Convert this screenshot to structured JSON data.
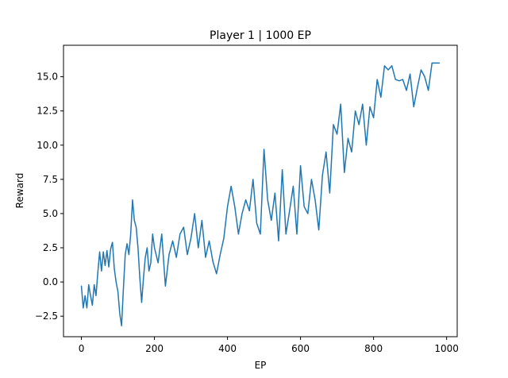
{
  "chart_data": {
    "type": "line",
    "title": "Player 1 | 1000 EP",
    "xlabel": "EP",
    "ylabel": "Reward",
    "xlim": [
      -49,
      1029
    ],
    "ylim": [
      -4.0,
      17.3
    ],
    "xticks": [
      0,
      200,
      400,
      600,
      800,
      1000
    ],
    "xtick_labels": [
      "0",
      "200",
      "400",
      "600",
      "800",
      "1000"
    ],
    "yticks": [
      -2.5,
      0.0,
      2.5,
      5.0,
      7.5,
      10.0,
      12.5,
      15.0
    ],
    "ytick_labels": [
      "−2.5",
      "0.0",
      "2.5",
      "5.0",
      "7.5",
      "10.0",
      "12.5",
      "15.0"
    ],
    "grid": false,
    "legend": null,
    "line_color": "#1f77b4",
    "series": [
      {
        "x": [
          0,
          5,
          10,
          15,
          20,
          25,
          30,
          35,
          40,
          45,
          50,
          55,
          60,
          65,
          70,
          75,
          80,
          85,
          90,
          95,
          100,
          105,
          110,
          115,
          120,
          125,
          130,
          135,
          140,
          145,
          150,
          155,
          160,
          165,
          170,
          175,
          180,
          185,
          190,
          195,
          200,
          210,
          220,
          230,
          240,
          250,
          260,
          270,
          280,
          290,
          300,
          310,
          320,
          330,
          340,
          350,
          360,
          370,
          380,
          390,
          400,
          410,
          420,
          430,
          440,
          450,
          460,
          470,
          480,
          490,
          500,
          510,
          520,
          530,
          540,
          550,
          560,
          570,
          580,
          590,
          600,
          610,
          620,
          630,
          640,
          650,
          660,
          670,
          680,
          690,
          700,
          710,
          720,
          730,
          740,
          750,
          760,
          770,
          780,
          790,
          800,
          810,
          820,
          830,
          840,
          850,
          860,
          870,
          880,
          890,
          900,
          910,
          920,
          930,
          940,
          950,
          960,
          970,
          980
        ],
        "y": [
          -0.3,
          -1.9,
          -1.0,
          -1.9,
          -0.2,
          -1.0,
          -1.7,
          -0.2,
          -1.0,
          0.7,
          2.2,
          0.8,
          2.2,
          1.2,
          2.3,
          1.1,
          2.4,
          2.9,
          1.0,
          0.0,
          -0.7,
          -2.3,
          -3.2,
          -0.5,
          2.0,
          2.8,
          2.0,
          3.5,
          6.0,
          4.5,
          4.0,
          2.5,
          0.3,
          -1.5,
          0.3,
          1.8,
          2.5,
          0.8,
          1.4,
          3.5,
          2.5,
          1.4,
          3.5,
          -0.3,
          2.0,
          3.0,
          1.8,
          3.5,
          4.0,
          2.0,
          3.2,
          5.0,
          2.5,
          4.5,
          1.8,
          3.0,
          1.5,
          0.6,
          2.0,
          3.2,
          5.5,
          7.0,
          5.5,
          3.5,
          5.0,
          6.0,
          5.2,
          7.5,
          4.3,
          3.5,
          9.7,
          6.0,
          4.5,
          6.5,
          3.0,
          8.2,
          3.5,
          5.2,
          7.0,
          3.5,
          8.5,
          5.5,
          5.0,
          7.5,
          6.0,
          3.8,
          7.8,
          9.5,
          6.5,
          11.5,
          10.8,
          13.0,
          8.0,
          10.5,
          9.5,
          12.5,
          11.5,
          13.0,
          10.0,
          12.8,
          12.0,
          14.8,
          13.5,
          15.8,
          15.5,
          15.8,
          14.8,
          14.7,
          14.8,
          14.0,
          15.2,
          12.8,
          14.2,
          15.5,
          15.0,
          14.0,
          16.0,
          16.0,
          16.0
        ]
      }
    ]
  }
}
